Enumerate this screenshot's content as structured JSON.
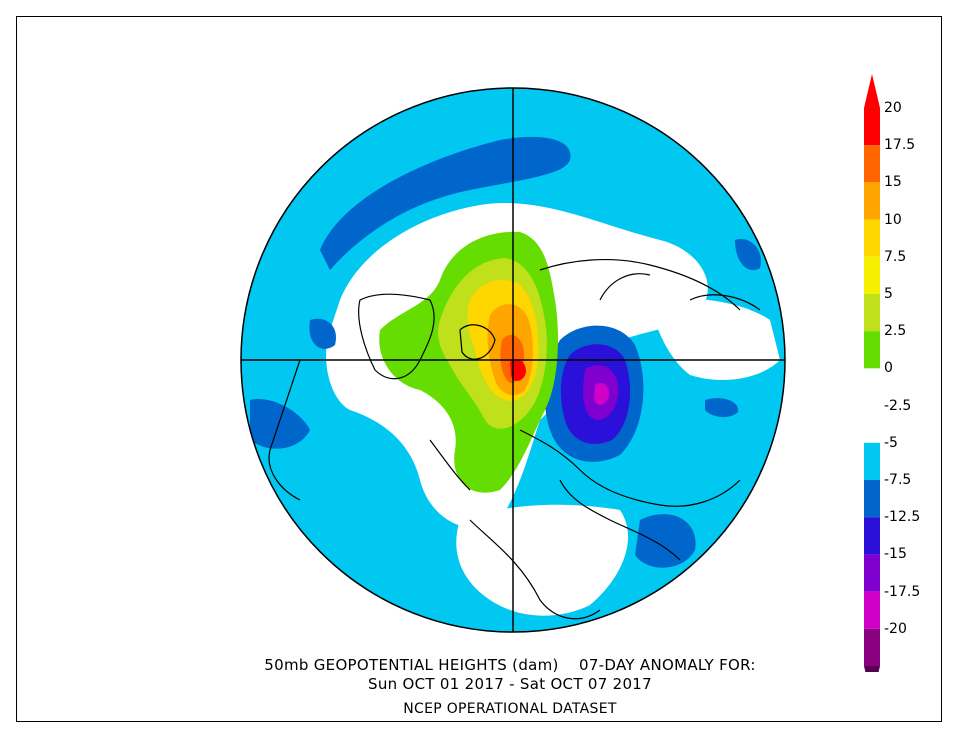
{
  "caption": {
    "line1": "50mb GEOPOTENTIAL HEIGHTS (dam)    07-DAY ANOMALY FOR:",
    "line2": "Sun OCT 01 2017 - Sat OCT 07 2017",
    "line3": "NCEP OPERATIONAL DATASET"
  },
  "colorbar": {
    "levels": [
      {
        "label": "20",
        "color": "#ff0000"
      },
      {
        "label": "17.5",
        "color": "#ff6600"
      },
      {
        "label": "15",
        "color": "#ffa500"
      },
      {
        "label": "10",
        "color": "#ffd700"
      },
      {
        "label": "7.5",
        "color": "#f4f000"
      },
      {
        "label": "5",
        "color": "#bfe01a"
      },
      {
        "label": "2.5",
        "color": "#66dd00"
      },
      {
        "label": "0",
        "color": "#ffffff"
      },
      {
        "label": "-2.5",
        "color": "#ffffff"
      },
      {
        "label": "-5",
        "color": "#00c8f0"
      },
      {
        "label": "-7.5",
        "color": "#0066cc"
      },
      {
        "label": "-12.5",
        "color": "#2a10d8"
      },
      {
        "label": "-15",
        "color": "#8000d0"
      },
      {
        "label": "-17.5",
        "color": "#d000c8"
      },
      {
        "label": "-20",
        "color": "#8a0080"
      }
    ],
    "top_arrow_color": "#ff0000",
    "bottom_arrow_color": "#55004e"
  },
  "colors": {
    "ocean_base": "#00c8f0",
    "dark_blue": "#0066cc",
    "deep_blue": "#2a10d8",
    "violet": "#8000d0",
    "magenta": "#d000c8",
    "green": "#66dd00",
    "yellowgreen": "#bfe01a",
    "yellow": "#ffd700",
    "orange": "#ffa500",
    "dark_orange": "#ff6600",
    "red": "#ff0000"
  }
}
